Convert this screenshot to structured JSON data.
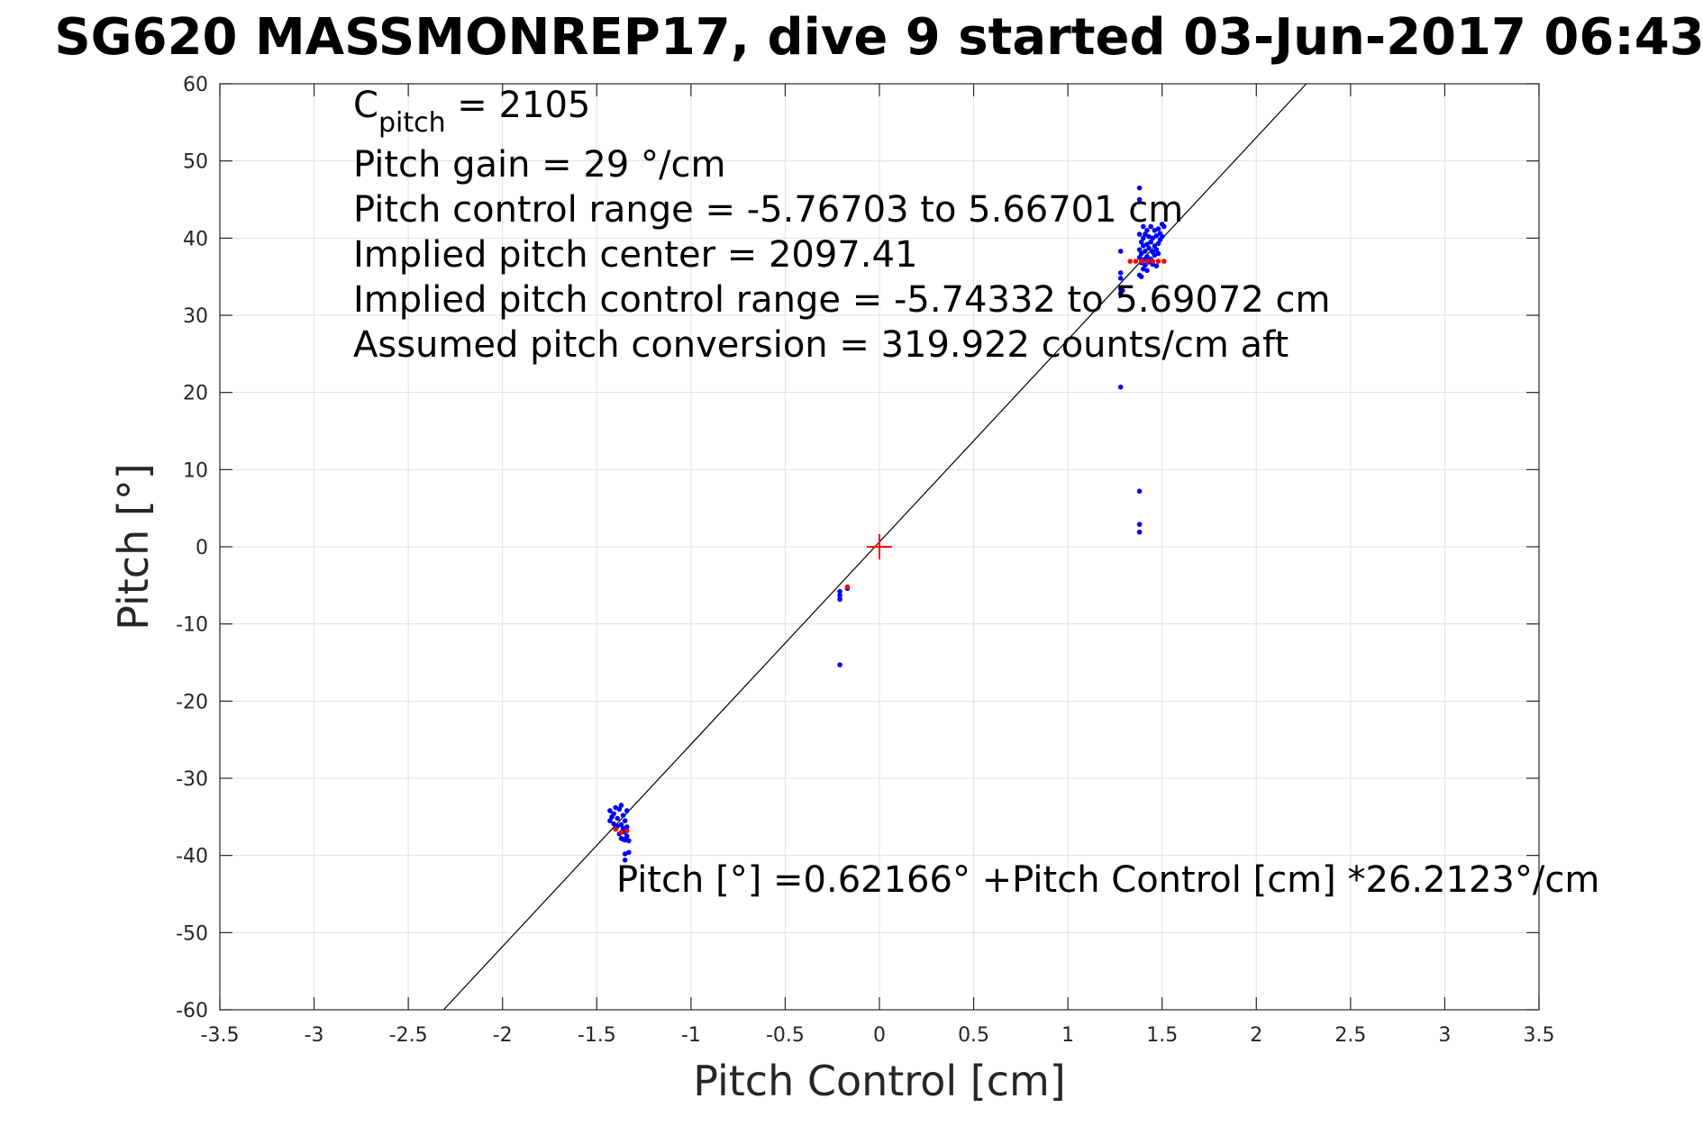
{
  "chart_data": {
    "type": "scatter",
    "title": "SG620 MASSMONREP17, dive 9 started 03-Jun-2017 06:43",
    "xlabel": "Pitch Control [cm]",
    "ylabel": "Pitch [°]",
    "xlim": [
      -3.5,
      3.5
    ],
    "ylim": [
      -60,
      60
    ],
    "xticks": [
      -3.5,
      -3,
      -2.5,
      -2,
      -1.5,
      -1,
      -0.5,
      0,
      0.5,
      1,
      1.5,
      2,
      2.5,
      3,
      3.5
    ],
    "xtick_labels": [
      "-3.5",
      "-3",
      "-2.5",
      "-2",
      "-1.5",
      "-1",
      "-0.5",
      "0",
      "0.5",
      "1",
      "1.5",
      "2",
      "2.5",
      "3",
      "3.5"
    ],
    "yticks": [
      -60,
      -50,
      -40,
      -30,
      -20,
      -10,
      0,
      10,
      20,
      30,
      40,
      50,
      60
    ],
    "ytick_labels": [
      "-60",
      "-50",
      "-40",
      "-30",
      "-20",
      "-10",
      "0",
      "10",
      "20",
      "30",
      "40",
      "50",
      "60"
    ],
    "grid": true,
    "annotations": {
      "c_pitch_base": "C",
      "c_pitch_sub": "pitch",
      "c_pitch_value": " = 2105",
      "lines": [
        "Pitch gain = 29 °/cm",
        "Pitch control range = -5.76703 to 5.66701 cm",
        "Implied pitch center = 2097.41",
        "Implied pitch control range = -5.74332 to 5.69072 cm",
        "Assumed pitch conversion = 319.922 counts/cm aft"
      ],
      "fit_equation": "Pitch [°] =0.62166° +Pitch Control [cm] *26.2123°/cm"
    },
    "fit_line": {
      "intercept": 0.62166,
      "slope": 26.2123,
      "color": "#000000"
    },
    "center_marker": {
      "x": 0,
      "y": 0,
      "color": "#ff0000",
      "marker": "plus"
    },
    "series": [
      {
        "color": "#0000ff",
        "marker": "dot",
        "points": [
          [
            1.38,
            46.5
          ],
          [
            1.38,
            45.0
          ],
          [
            1.4,
            41.5
          ],
          [
            1.42,
            41.0
          ],
          [
            1.44,
            41.5
          ],
          [
            1.46,
            41.0
          ],
          [
            1.48,
            41.2
          ],
          [
            1.5,
            41.8
          ],
          [
            1.51,
            41.5
          ],
          [
            1.38,
            40.5
          ],
          [
            1.4,
            40.0
          ],
          [
            1.41,
            40.5
          ],
          [
            1.43,
            40.2
          ],
          [
            1.45,
            40.0
          ],
          [
            1.47,
            40.3
          ],
          [
            1.49,
            40.6
          ],
          [
            1.5,
            40.2
          ],
          [
            1.39,
            39.5
          ],
          [
            1.4,
            39.0
          ],
          [
            1.42,
            39.2
          ],
          [
            1.44,
            39.5
          ],
          [
            1.46,
            39.0
          ],
          [
            1.48,
            39.3
          ],
          [
            1.49,
            39.8
          ],
          [
            1.38,
            38.5
          ],
          [
            1.39,
            38.0
          ],
          [
            1.41,
            38.3
          ],
          [
            1.43,
            38.7
          ],
          [
            1.45,
            38.2
          ],
          [
            1.47,
            38.5
          ],
          [
            1.48,
            38.0
          ],
          [
            1.38,
            37.5
          ],
          [
            1.4,
            37.2
          ],
          [
            1.42,
            37.6
          ],
          [
            1.44,
            37.3
          ],
          [
            1.46,
            37.8
          ],
          [
            1.39,
            36.8
          ],
          [
            1.41,
            36.5
          ],
          [
            1.43,
            36.9
          ],
          [
            1.45,
            36.6
          ],
          [
            1.47,
            36.4
          ],
          [
            1.4,
            36.0
          ],
          [
            1.42,
            35.8
          ],
          [
            1.38,
            35.2
          ],
          [
            1.39,
            35.0
          ],
          [
            1.28,
            38.3
          ],
          [
            1.28,
            35.5
          ],
          [
            1.28,
            34.8
          ],
          [
            1.28,
            33.5
          ],
          [
            1.28,
            32.8
          ],
          [
            1.29,
            33.2
          ],
          [
            1.28,
            20.7
          ],
          [
            1.38,
            7.2
          ],
          [
            1.38,
            2.9
          ],
          [
            1.38,
            1.9
          ],
          [
            -0.21,
            -5.8
          ],
          [
            -0.21,
            -6.3
          ],
          [
            -0.21,
            -6.8
          ],
          [
            -0.17,
            -5.4
          ],
          [
            -0.21,
            -15.3
          ],
          [
            -1.43,
            -34.2
          ],
          [
            -1.42,
            -35.0
          ],
          [
            -1.41,
            -34.6
          ],
          [
            -1.4,
            -33.8
          ],
          [
            -1.39,
            -35.2
          ],
          [
            -1.38,
            -34.0
          ],
          [
            -1.37,
            -33.5
          ],
          [
            -1.36,
            -34.8
          ],
          [
            -1.35,
            -35.5
          ],
          [
            -1.34,
            -34.2
          ],
          [
            -1.43,
            -35.5
          ],
          [
            -1.41,
            -35.9
          ],
          [
            -1.39,
            -36.2
          ],
          [
            -1.37,
            -36.0
          ],
          [
            -1.36,
            -36.5
          ],
          [
            -1.35,
            -37.0
          ],
          [
            -1.34,
            -36.3
          ],
          [
            -1.38,
            -37.2
          ],
          [
            -1.37,
            -37.8
          ],
          [
            -1.35,
            -38.0
          ],
          [
            -1.34,
            -37.5
          ],
          [
            -1.36,
            -37.9
          ],
          [
            -1.33,
            -38.1
          ],
          [
            -1.35,
            -39.8
          ],
          [
            -1.33,
            -39.6
          ],
          [
            -1.35,
            -40.6
          ]
        ]
      },
      {
        "color": "#ff0000",
        "marker": "dot",
        "points": [
          [
            1.33,
            37.0
          ],
          [
            1.36,
            37.0
          ],
          [
            1.39,
            37.0
          ],
          [
            1.42,
            37.0
          ],
          [
            1.45,
            37.0
          ],
          [
            1.48,
            37.0
          ],
          [
            1.51,
            37.0
          ],
          [
            -0.17,
            -5.2
          ],
          [
            -1.4,
            -36.6
          ],
          [
            -1.37,
            -37.0
          ],
          [
            -1.34,
            -36.8
          ]
        ]
      }
    ]
  }
}
